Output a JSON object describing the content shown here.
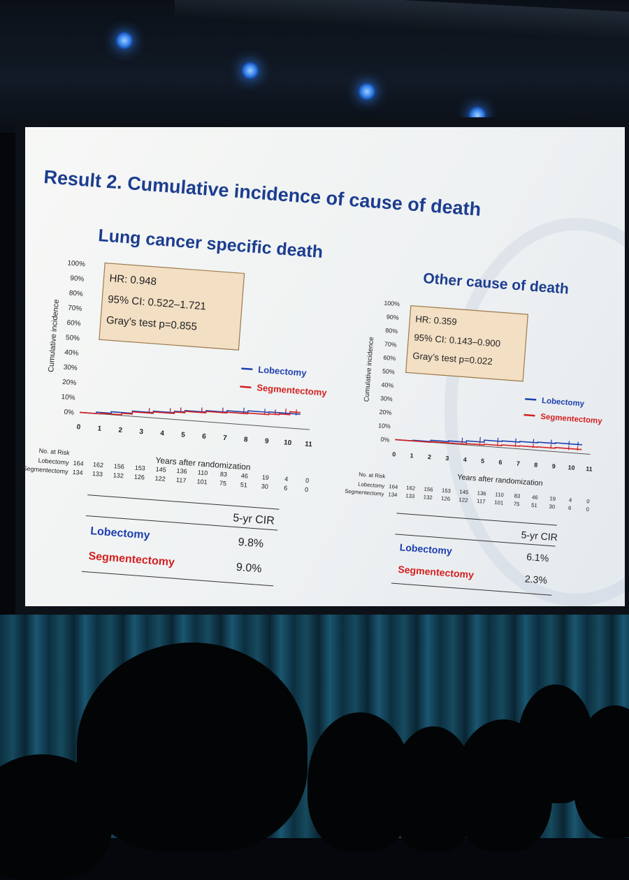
{
  "slide": {
    "title": "Result 2. Cumulative incidence of cause of death"
  },
  "colors": {
    "title": "#1c3d8f",
    "lobectomy": "#1d3fae",
    "segmentectomy": "#d42020",
    "stats_box": "#f2dfc4"
  },
  "chart_data": [
    {
      "type": "line",
      "title": "Lung cancer specific death",
      "xlabel": "Years after randomization",
      "ylabel": "Cumulative incidence",
      "xlim": [
        0,
        11
      ],
      "ylim": [
        0,
        100
      ],
      "x_ticks": [
        "0",
        "1",
        "2",
        "3",
        "4",
        "5",
        "6",
        "7",
        "8",
        "9",
        "10",
        "11"
      ],
      "y_ticks": [
        "0%",
        "10%",
        "20%",
        "30%",
        "40%",
        "50%",
        "60%",
        "70%",
        "80%",
        "90%",
        "100%"
      ],
      "legend": [
        "Lobectomy",
        "Segmentectomy"
      ],
      "stats": [
        "HR: 0.948",
        "95% CI: 0.522–1.721",
        "Gray’s test p=0.855"
      ],
      "series": [
        {
          "name": "Lobectomy",
          "color": "#1d3fae",
          "x": [
            0,
            0.8,
            1.5,
            2.5,
            3.5,
            4.5,
            5,
            6,
            7,
            8,
            9,
            9.5,
            10,
            10.5
          ],
          "y": [
            0,
            1,
            2,
            3.5,
            4.5,
            5.5,
            6.5,
            7.5,
            8.5,
            9.5,
            9.8,
            9.8,
            9.8,
            9.8
          ]
        },
        {
          "name": "Segmentectomy",
          "color": "#d42020",
          "x": [
            0,
            1,
            2,
            2.5,
            3.5,
            4.5,
            5,
            6,
            7,
            8,
            9,
            9.5,
            10,
            10.5
          ],
          "y": [
            0,
            0.5,
            1.5,
            3,
            4,
            5,
            6,
            7,
            7.5,
            8,
            8.5,
            9,
            11,
            11
          ]
        }
      ],
      "risk_table": {
        "header": "No. at Risk",
        "rows": [
          {
            "label": "Lobectomy",
            "values": [
              "164",
              "162",
              "156",
              "153",
              "145",
              "136",
              "110",
              "83",
              "46",
              "19",
              "4",
              "0"
            ]
          },
          {
            "label": "Segmentectomy",
            "values": [
              "134",
              "133",
              "132",
              "126",
              "122",
              "117",
              "101",
              "75",
              "51",
              "30",
              "6",
              "0"
            ]
          }
        ]
      },
      "cir_table": {
        "header": "5-yr CIR",
        "rows": [
          {
            "label": "Lobectomy",
            "value": "9.8%"
          },
          {
            "label": "Segmentectomy",
            "value": "9.0%"
          }
        ]
      }
    },
    {
      "type": "line",
      "title": "Other cause of death",
      "xlabel": "Years after randomization",
      "ylabel": "Cumulative incidence",
      "xlim": [
        0,
        11
      ],
      "ylim": [
        0,
        100
      ],
      "x_ticks": [
        "0",
        "1",
        "2",
        "3",
        "4",
        "5",
        "6",
        "7",
        "8",
        "9",
        "10",
        "11"
      ],
      "y_ticks": [
        "0%",
        "10%",
        "20%",
        "30%",
        "40%",
        "50%",
        "60%",
        "70%",
        "80%",
        "90%",
        "100%"
      ],
      "legend": [
        "Lobectomy",
        "Segmentectomy"
      ],
      "stats": [
        "HR: 0.359",
        "95% CI: 0.143–0.900",
        "Gray’s test p=0.022"
      ],
      "series": [
        {
          "name": "Lobectomy",
          "color": "#1d3fae",
          "x": [
            0,
            1,
            2,
            3,
            4,
            5,
            6,
            7,
            8,
            9,
            10,
            10.5
          ],
          "y": [
            0,
            0.5,
            1.5,
            2,
            3,
            4.5,
            5,
            5.5,
            6,
            6.5,
            6.5,
            6.5
          ]
        },
        {
          "name": "Segmentectomy",
          "color": "#d42020",
          "x": [
            0,
            1,
            2,
            3,
            4,
            5,
            6,
            7,
            8,
            9,
            10,
            10.5
          ],
          "y": [
            0,
            0,
            0.5,
            0.5,
            1,
            1.5,
            2,
            2.3,
            2.5,
            3,
            3,
            3
          ]
        }
      ],
      "risk_table": {
        "header": "No. at Risk",
        "rows": [
          {
            "label": "Lobectomy",
            "values": [
              "164",
              "162",
              "156",
              "153",
              "145",
              "136",
              "110",
              "83",
              "46",
              "19",
              "4",
              "0"
            ]
          },
          {
            "label": "Segmentectomy",
            "values": [
              "134",
              "133",
              "132",
              "126",
              "122",
              "117",
              "101",
              "75",
              "51",
              "30",
              "6",
              "0"
            ]
          }
        ]
      },
      "cir_table": {
        "header": "5-yr CIR",
        "rows": [
          {
            "label": "Lobectomy",
            "value": "6.1%"
          },
          {
            "label": "Segmentectomy",
            "value": "2.3%"
          }
        ]
      }
    }
  ]
}
